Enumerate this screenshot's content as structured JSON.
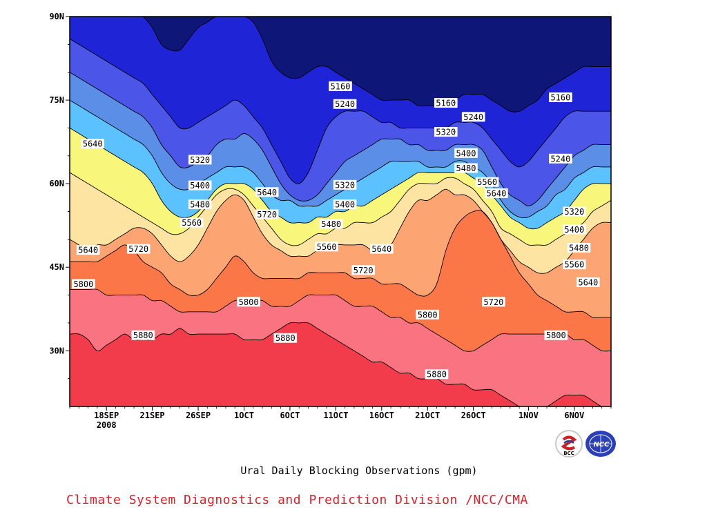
{
  "chart_data": {
    "type": "heatmap",
    "title": "Ural Daily Blocking Observations (gpm)",
    "x_axis": {
      "ticks": [
        {
          "label": "18SEP",
          "day": 0
        },
        {
          "label": "21SEP",
          "day": 5
        },
        {
          "label": "26SEP",
          "day": 10
        },
        {
          "label": "1OCT",
          "day": 15
        },
        {
          "label": "6OCT",
          "day": 20
        },
        {
          "label": "11OCT",
          "day": 25
        },
        {
          "label": "16OCT",
          "day": 30
        },
        {
          "label": "21OCT",
          "day": 35
        },
        {
          "label": "26OCT",
          "day": 40
        },
        {
          "label": "1NOV",
          "day": 46
        },
        {
          "label": "6NOV",
          "day": 51
        }
      ],
      "year_label": "2008",
      "range_days": [
        -4,
        55
      ]
    },
    "y_axis": {
      "ticks": [
        "30N",
        "45N",
        "60N",
        "75N",
        "90N"
      ],
      "tick_values": [
        30,
        45,
        60,
        75,
        90
      ],
      "range": [
        20,
        90
      ]
    },
    "levels": [
      5160,
      5240,
      5320,
      5400,
      5480,
      5560,
      5640,
      5720,
      5800,
      5880
    ],
    "level_colors": [
      "#0e1678",
      "#1f25d6",
      "#4b55e8",
      "#5b8ee6",
      "#5cc2ff",
      "#f9f77b",
      "#fde4a2",
      "#fca472",
      "#fc7748",
      "#f97480",
      "#f23c4c"
    ],
    "contours": [
      {
        "value": 5880,
        "lat": [
          33,
          33,
          32,
          30,
          31,
          32,
          33,
          32,
          32,
          32,
          33,
          33,
          34,
          33,
          33,
          33,
          33,
          33,
          33,
          32,
          32,
          32,
          33,
          34,
          35,
          35,
          35,
          34,
          33,
          32,
          31,
          30,
          29,
          28,
          28,
          27,
          26,
          26,
          25,
          25,
          25,
          24,
          24,
          24,
          23,
          23,
          23,
          22,
          21,
          20,
          19.5,
          20,
          20,
          21,
          22,
          22,
          22,
          21,
          20,
          20
        ]
      },
      {
        "value": 5800,
        "lat": [
          41,
          41,
          41,
          41,
          40,
          40,
          40,
          40,
          40,
          39,
          39,
          38,
          37,
          37,
          37,
          37,
          37,
          38,
          39,
          39,
          39,
          39,
          38,
          38,
          38,
          39,
          40,
          40,
          40,
          40,
          39,
          38,
          38,
          38,
          37,
          36,
          36,
          35,
          35,
          34,
          33,
          32,
          31,
          30,
          30,
          31,
          32,
          33,
          33,
          33,
          33,
          33,
          33,
          33,
          33,
          32,
          32,
          31,
          30,
          30
        ]
      },
      {
        "value": 5720,
        "lat": [
          46,
          46,
          46,
          46,
          47,
          48,
          49,
          48,
          46,
          45,
          44,
          42,
          41,
          40,
          40,
          41,
          43,
          45,
          47,
          46,
          44,
          43,
          43,
          43,
          43,
          43,
          44,
          44,
          44,
          44,
          44,
          43,
          43,
          43,
          42,
          42,
          42,
          41,
          40,
          40,
          42,
          48,
          52,
          54,
          55,
          55,
          53,
          50,
          47,
          44,
          42,
          40,
          39,
          38,
          37,
          37,
          37,
          36,
          36,
          36
        ]
      },
      {
        "value": 5640,
        "lat": [
          50,
          49,
          48,
          49,
          49,
          50,
          51,
          52,
          52,
          51,
          49,
          47,
          46,
          47,
          49,
          52,
          55,
          57,
          58,
          57,
          54,
          51,
          49,
          48,
          47,
          47,
          47,
          48,
          48,
          49,
          49,
          49,
          49,
          48,
          48,
          49,
          52,
          55,
          57,
          57,
          58,
          59,
          58,
          58,
          57,
          55,
          53,
          50,
          48,
          46,
          45,
          44,
          44,
          45,
          46,
          48,
          50,
          52,
          53,
          53
        ]
      },
      {
        "value": 5560,
        "lat": [
          62,
          61,
          60,
          59,
          58,
          57,
          56,
          55,
          54,
          53,
          52,
          51,
          51,
          52,
          54,
          56,
          58,
          59,
          59,
          58,
          56,
          54,
          52,
          50,
          49,
          49,
          50,
          51,
          51,
          52,
          52,
          53,
          53,
          53,
          54,
          55,
          57,
          59,
          60,
          60,
          60,
          61,
          61,
          60,
          59,
          57,
          55,
          52,
          51,
          50,
          49,
          49,
          49,
          50,
          51,
          52,
          53,
          55,
          56,
          57
        ]
      },
      {
        "value": 5480,
        "lat": [
          70,
          69,
          68,
          67,
          66,
          65,
          64,
          63,
          62,
          60,
          57,
          55,
          54,
          54,
          55,
          57,
          59,
          60,
          60,
          60,
          59,
          57,
          55,
          54,
          53,
          53,
          53,
          54,
          54,
          55,
          55,
          56,
          56,
          57,
          58,
          59,
          60,
          61,
          62,
          62,
          62,
          62,
          62,
          62,
          61,
          60,
          58,
          56,
          54,
          53,
          52,
          52,
          53,
          54,
          55,
          57,
          59,
          60,
          60,
          60
        ]
      },
      {
        "value": 5400,
        "lat": [
          75,
          74,
          73,
          72,
          71,
          70,
          69,
          68,
          67,
          65,
          62,
          60,
          59,
          59,
          60,
          61,
          62,
          63,
          63,
          63,
          62,
          60,
          58,
          57,
          57,
          56,
          56,
          56,
          57,
          58,
          59,
          60,
          61,
          62,
          63,
          64,
          64,
          64,
          64,
          63,
          63,
          63,
          64,
          64,
          63,
          62,
          60,
          57,
          55,
          54,
          54,
          55,
          56,
          58,
          59,
          61,
          62,
          63,
          63,
          63
        ]
      },
      {
        "value": 5320,
        "lat": [
          80,
          79,
          78,
          77,
          76,
          75,
          74,
          73,
          72,
          70,
          67,
          65,
          63,
          63,
          64,
          65,
          67,
          68,
          68,
          69,
          68,
          66,
          63,
          60,
          58,
          57,
          57,
          58,
          60,
          62,
          64,
          65,
          66,
          67,
          68,
          68,
          68,
          67,
          67,
          66,
          66,
          66,
          67,
          67,
          67,
          66,
          63,
          60,
          58,
          57,
          56,
          57,
          59,
          61,
          63,
          65,
          66,
          67,
          67,
          67
        ]
      },
      {
        "value": 5240,
        "lat": [
          86,
          85,
          84,
          83,
          82,
          81,
          80,
          79,
          78,
          76,
          74,
          72,
          70,
          70,
          71,
          72,
          73,
          74,
          75,
          74,
          72,
          70,
          67,
          64,
          61,
          60,
          62,
          66,
          70,
          72,
          73,
          73,
          73,
          72,
          71,
          71,
          70,
          70,
          70,
          70,
          70,
          70,
          71,
          71,
          71,
          70,
          68,
          66,
          64,
          63,
          64,
          66,
          68,
          70,
          72,
          73,
          73,
          73,
          73,
          73
        ]
      },
      {
        "value": 5160,
        "lat": [
          91,
          91,
          91,
          91,
          91,
          91,
          91,
          91,
          90,
          88,
          85,
          84,
          84,
          86,
          88,
          89,
          90,
          90,
          90,
          90,
          89,
          86,
          82,
          80,
          79,
          79,
          80,
          81,
          81,
          80,
          79,
          78,
          77,
          76,
          75,
          75,
          75,
          75,
          74,
          74,
          74,
          74,
          75,
          76,
          76,
          76,
          75,
          74,
          73,
          73,
          74,
          75,
          77,
          78,
          79,
          80,
          81,
          81,
          81,
          81
        ]
      }
    ],
    "contour_labels": [
      {
        "text": "5160",
        "day": 25.5,
        "lat": 77.5
      },
      {
        "text": "5160",
        "day": 37,
        "lat": 74.5
      },
      {
        "text": "5160",
        "day": 49.5,
        "lat": 75.5
      },
      {
        "text": "5240",
        "day": 26,
        "lat": 74.3
      },
      {
        "text": "5240",
        "day": 40,
        "lat": 72
      },
      {
        "text": "5240",
        "day": 49.5,
        "lat": 64.5
      },
      {
        "text": "5320",
        "day": 10.2,
        "lat": 64.3
      },
      {
        "text": "5320",
        "day": 37,
        "lat": 69.3
      },
      {
        "text": "5320",
        "day": 26,
        "lat": 59.8
      },
      {
        "text": "5320",
        "day": 51,
        "lat": 55
      },
      {
        "text": "5400",
        "day": 10.2,
        "lat": 59.7
      },
      {
        "text": "5400",
        "day": 26,
        "lat": 56.3
      },
      {
        "text": "5400",
        "day": 39.2,
        "lat": 65.5
      },
      {
        "text": "5400",
        "day": 51,
        "lat": 51.8
      },
      {
        "text": "5480",
        "day": 10.2,
        "lat": 56.3
      },
      {
        "text": "5480",
        "day": 24.5,
        "lat": 52.8
      },
      {
        "text": "5480",
        "day": 39.2,
        "lat": 62.8
      },
      {
        "text": "5480",
        "day": 51.5,
        "lat": 48.5
      },
      {
        "text": "5560",
        "day": 9.3,
        "lat": 53
      },
      {
        "text": "5560",
        "day": 24,
        "lat": 48.7
      },
      {
        "text": "5560",
        "day": 41.5,
        "lat": 60.3
      },
      {
        "text": "5560",
        "day": 51,
        "lat": 45.5
      },
      {
        "text": "5640",
        "day": -1.5,
        "lat": 67.2
      },
      {
        "text": "5640",
        "day": -2,
        "lat": 48.1
      },
      {
        "text": "5640",
        "day": 17.5,
        "lat": 58.5
      },
      {
        "text": "5640",
        "day": 30,
        "lat": 48.3
      },
      {
        "text": "5640",
        "day": 42.5,
        "lat": 58.3
      },
      {
        "text": "5640",
        "day": 52.5,
        "lat": 42.3
      },
      {
        "text": "5720",
        "day": 3.5,
        "lat": 48.3
      },
      {
        "text": "5720",
        "day": 17.5,
        "lat": 54.5
      },
      {
        "text": "5720",
        "day": 28,
        "lat": 44.5
      },
      {
        "text": "5720",
        "day": 42.2,
        "lat": 38.8
      },
      {
        "text": "5800",
        "day": -2.5,
        "lat": 42
      },
      {
        "text": "5800",
        "day": 15.5,
        "lat": 38.8
      },
      {
        "text": "5800",
        "day": 35,
        "lat": 36.5
      },
      {
        "text": "5800",
        "day": 49,
        "lat": 32.8
      },
      {
        "text": "5880",
        "day": 4,
        "lat": 32.8
      },
      {
        "text": "5880",
        "day": 19.5,
        "lat": 32.3
      },
      {
        "text": "5880",
        "day": 36,
        "lat": 25.8
      }
    ]
  },
  "caption": {
    "title": "Ural Daily Blocking Observations (gpm)",
    "credit": "Climate System Diagnostics and Prediction Division /NCC/CMA"
  },
  "logos": {
    "left_text": "BCC",
    "right_text": "NCC"
  }
}
